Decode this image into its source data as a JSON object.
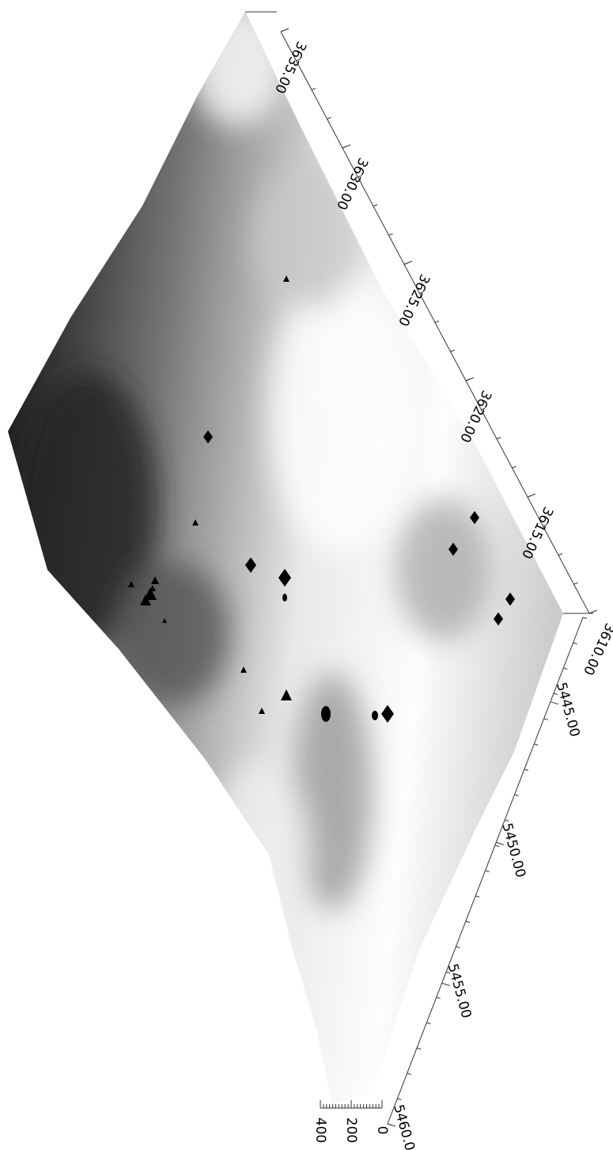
{
  "chart_data": {
    "type": "surface3d",
    "xlim": [
      3610,
      3635
    ],
    "xticks": [
      {
        "value": 3610,
        "label": "3610.00"
      },
      {
        "value": 3615,
        "label": "3615.00"
      },
      {
        "value": 3620,
        "label": "3620.00"
      },
      {
        "value": 3625,
        "label": "3625.00"
      },
      {
        "value": 3630,
        "label": "3630.00"
      },
      {
        "value": 3635,
        "label": "3635.00"
      }
    ],
    "ylim": [
      5442,
      5460
    ],
    "yticks": [
      {
        "value": 5445,
        "label": "5445.00"
      },
      {
        "value": 5450,
        "label": "5450.00"
      },
      {
        "value": 5455,
        "label": "5455.00"
      },
      {
        "value": 5460,
        "label": "5460.00"
      }
    ],
    "zlim": [
      0,
      400
    ],
    "zticks": [
      0,
      200,
      400
    ]
  }
}
